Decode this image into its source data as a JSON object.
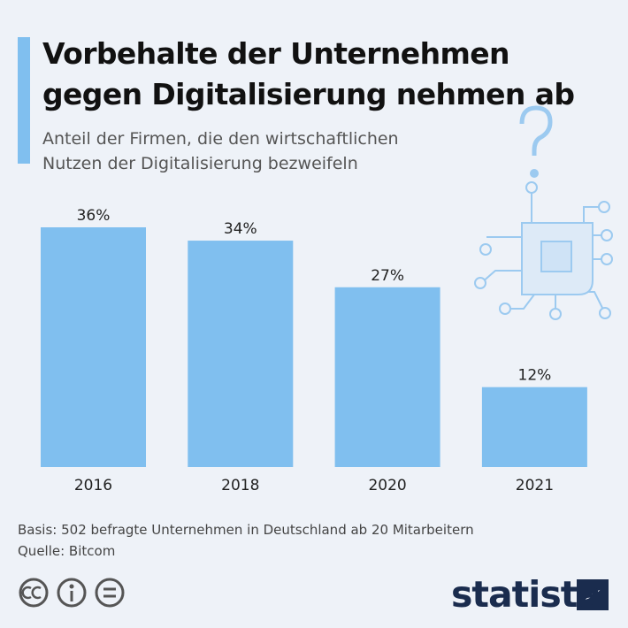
{
  "chart_data": {
    "type": "bar",
    "title": "Vorbehalte der Unternehmen\ngegen Digitalisierung nehmen ab",
    "subtitle": "Anteil der Firmen, die den wirtschaftlichen\nNutzen der Digitalisierung bezweifeln",
    "categories": [
      "2016",
      "2018",
      "2020",
      "2021"
    ],
    "values": [
      36,
      34,
      27,
      12
    ],
    "value_labels": [
      "36%",
      "34%",
      "27%",
      "12%"
    ],
    "color": "#80bfef",
    "note": "Basis: 502 befragte Unternehmen in Deutschland ab 20 Mitarbeitern",
    "source": "Quelle: Bitcom",
    "logo": "statista"
  }
}
